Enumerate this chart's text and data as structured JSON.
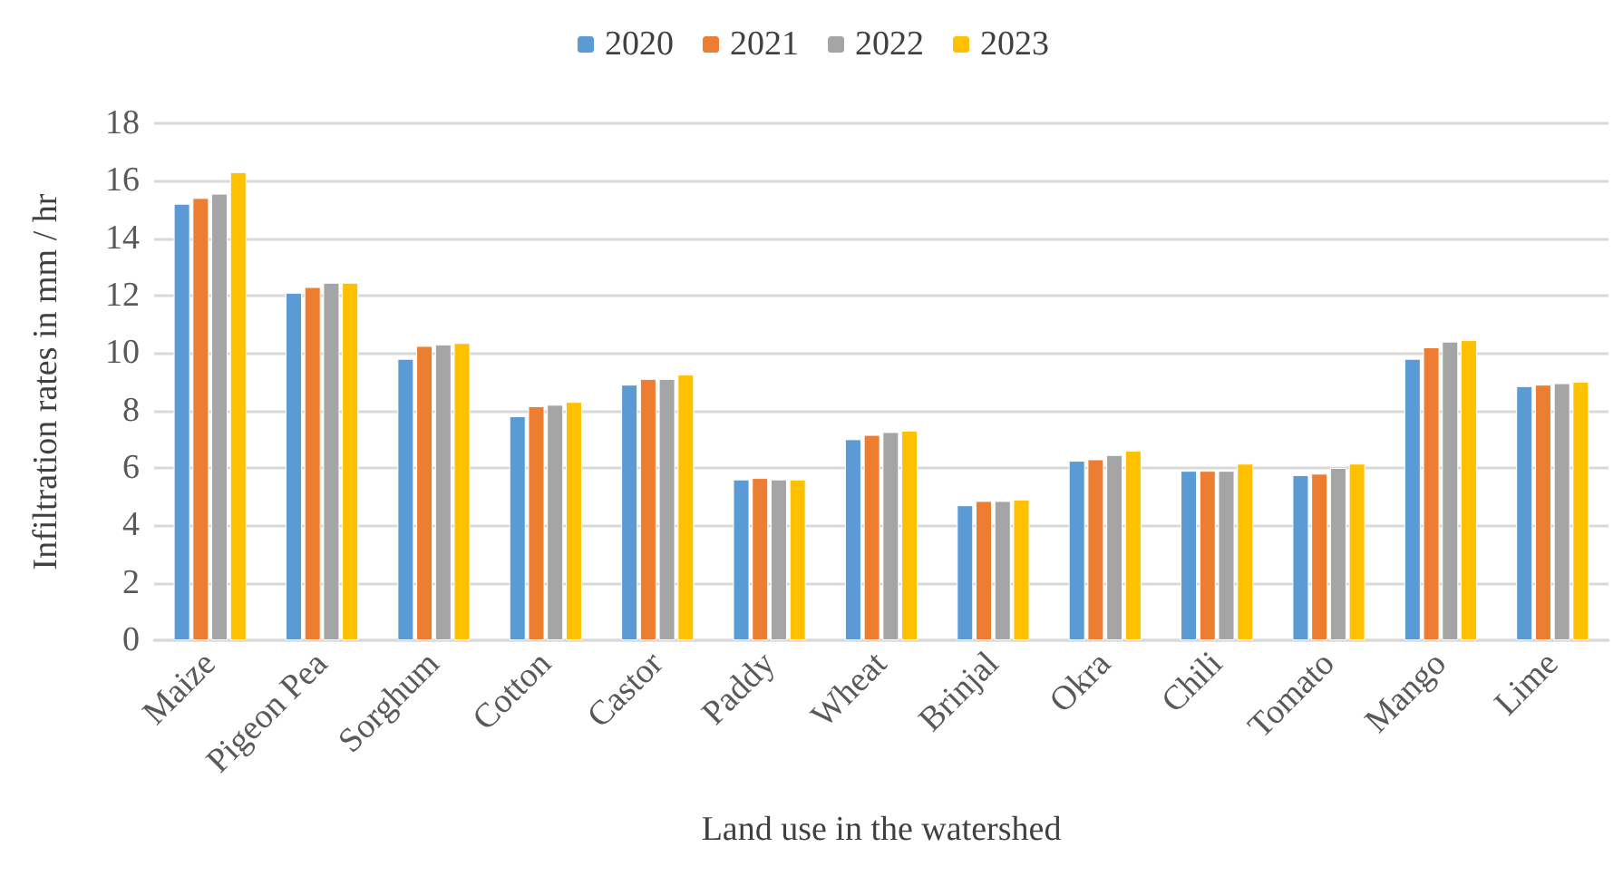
{
  "chart_data": {
    "type": "bar",
    "xlabel": "Land use in the watershed",
    "ylabel": "Infiltration rates in mm / hr",
    "categories": [
      "Maize",
      "Pigeon Pea",
      "Sorghum",
      "Cotton",
      "Castor",
      "Paddy",
      "Wheat",
      "Brinjal",
      "Okra",
      "Chili",
      "Tomato",
      "Mango",
      "Lime"
    ],
    "series": [
      {
        "name": "2020",
        "color": "#5b9bd5",
        "values": [
          15.2,
          12.1,
          9.8,
          7.8,
          8.9,
          5.6,
          7.0,
          4.7,
          6.25,
          5.9,
          5.75,
          9.8,
          8.85
        ]
      },
      {
        "name": "2021",
        "color": "#ed7d31",
        "values": [
          15.4,
          12.3,
          10.25,
          8.15,
          9.1,
          5.65,
          7.15,
          4.85,
          6.3,
          5.9,
          5.8,
          10.2,
          8.9
        ]
      },
      {
        "name": "2022",
        "color": "#a5a5a5",
        "values": [
          15.55,
          12.45,
          10.3,
          8.2,
          9.1,
          5.6,
          7.25,
          4.85,
          6.45,
          5.9,
          6.0,
          10.4,
          8.95
        ]
      },
      {
        "name": "2023",
        "color": "#ffc000",
        "values": [
          16.3,
          12.45,
          10.35,
          8.3,
          9.25,
          5.6,
          7.3,
          4.9,
          6.6,
          6.15,
          6.15,
          10.45,
          9.0
        ]
      }
    ],
    "ylim": [
      0,
      18
    ],
    "yticks": [
      0,
      2,
      4,
      6,
      8,
      10,
      12,
      14,
      16,
      18
    ],
    "grid": "y",
    "legend": "top"
  }
}
